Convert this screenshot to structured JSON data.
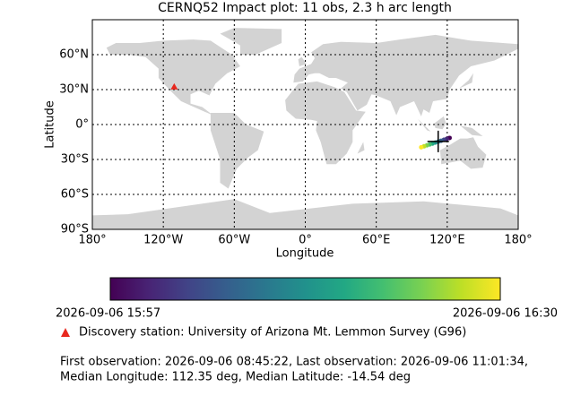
{
  "chart_data": {
    "type": "map",
    "title": "CERNQ52 Impact plot: 11 obs, 2.3 h arc length",
    "x_label": "Longitude",
    "y_label": "Latitude",
    "xlim": [
      -180,
      180
    ],
    "ylim": [
      -90,
      90
    ],
    "xticks": [
      {
        "value": -180,
        "label": "180°"
      },
      {
        "value": -120,
        "label": "120°W"
      },
      {
        "value": -60,
        "label": "60°W"
      },
      {
        "value": 0,
        "label": "0°"
      },
      {
        "value": 60,
        "label": "60°E"
      },
      {
        "value": 120,
        "label": "120°E"
      },
      {
        "value": 180,
        "label": "180°"
      }
    ],
    "yticks": [
      {
        "value": 60,
        "label": "60°N"
      },
      {
        "value": 30,
        "label": "30°N"
      },
      {
        "value": 0,
        "label": "0°"
      },
      {
        "value": -30,
        "label": "30°S"
      },
      {
        "value": -60,
        "label": "60°S"
      },
      {
        "value": -90,
        "label": "90°S"
      }
    ],
    "grid": true,
    "track": {
      "lon": [
        122,
        119.6,
        117.2,
        114.8,
        112.4,
        110,
        107.6,
        105.2,
        102.8,
        100.4,
        98
      ],
      "lat": [
        -11.5,
        -12.3,
        -13.1,
        -13.9,
        -14.7,
        -15.5,
        -16.3,
        -17.1,
        -17.9,
        -18.7,
        -19.5
      ],
      "colors": [
        "#440154",
        "#482475",
        "#414487",
        "#355f8d",
        "#2a788e",
        "#21918c",
        "#22a884",
        "#44bf70",
        "#7ad151",
        "#bddf26",
        "#fde725"
      ]
    },
    "median": {
      "lon": 112.35,
      "lat": -14.54,
      "color": "#000000"
    },
    "station": {
      "lon": -110.79,
      "lat": 32.44,
      "color": "#e8281e"
    },
    "colorbar": {
      "start_label": "2026-09-06 15:57",
      "end_label": "2026-09-06 16:30"
    },
    "legend": "Discovery station: University of Arizona Mt. Lemmon Survey (G96)",
    "footer": [
      "First observation: 2026-09-06 08:45:22, Last observation: 2026-09-06 11:01:34,",
      "Median Longitude: 112.35 deg, Median Latitude: -14.54 deg"
    ]
  }
}
